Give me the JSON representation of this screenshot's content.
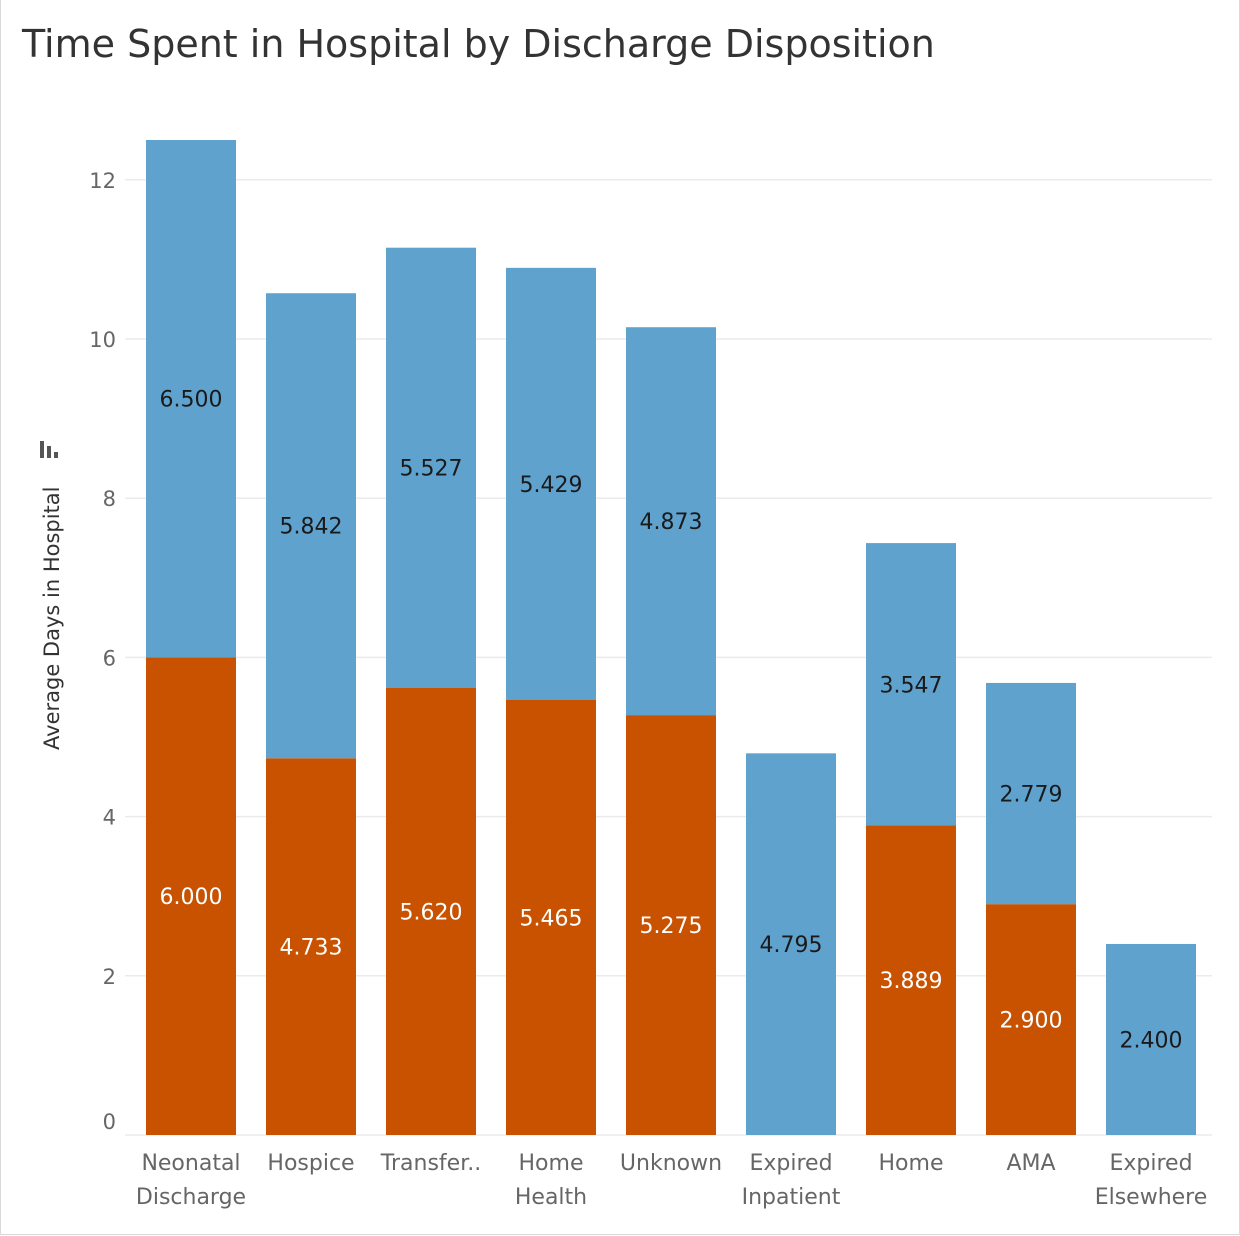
{
  "page": {
    "title": "Time Spent in Hospital by Discharge Disposition"
  },
  "colors": {
    "blue": "#5fa2cd",
    "orange": "#c85200",
    "grid": "#ebebeb",
    "tick_text": "#666666",
    "label_dark": "#1a1a1a",
    "label_light": "#ffffff"
  },
  "chart_data": {
    "type": "bar",
    "stacked": true,
    "title": "Time Spent in Hospital by Discharge Disposition",
    "xlabel": "",
    "ylabel": "Average Days in Hospital",
    "ylim": [
      0,
      13
    ],
    "yticks": [
      0,
      2,
      4,
      6,
      8,
      10,
      12
    ],
    "grid": true,
    "legend": "none",
    "categories": [
      [
        "Neonatal",
        "Discharge"
      ],
      [
        "Hospice"
      ],
      [
        "Transfer.."
      ],
      [
        "Home",
        "Health"
      ],
      [
        "Unknown"
      ],
      [
        "Expired",
        "Inpatient"
      ],
      [
        "Home"
      ],
      [
        "AMA"
      ],
      [
        "Expired",
        "Elsewhere"
      ]
    ],
    "series": [
      {
        "color": "#c85200",
        "values": [
          6.0,
          4.733,
          5.62,
          5.465,
          5.275,
          null,
          3.889,
          2.9,
          null
        ],
        "labels": [
          "6.000",
          "4.733",
          "5.620",
          "5.465",
          "5.275",
          null,
          "3.889",
          "2.900",
          null
        ]
      },
      {
        "color": "#5fa2cd",
        "values": [
          6.5,
          5.842,
          5.527,
          5.429,
          4.873,
          4.795,
          3.547,
          2.779,
          2.4
        ],
        "labels": [
          "6.500",
          "5.842",
          "5.527",
          "5.429",
          "4.873",
          "4.795",
          "3.547",
          "2.779",
          "2.400"
        ]
      }
    ]
  }
}
